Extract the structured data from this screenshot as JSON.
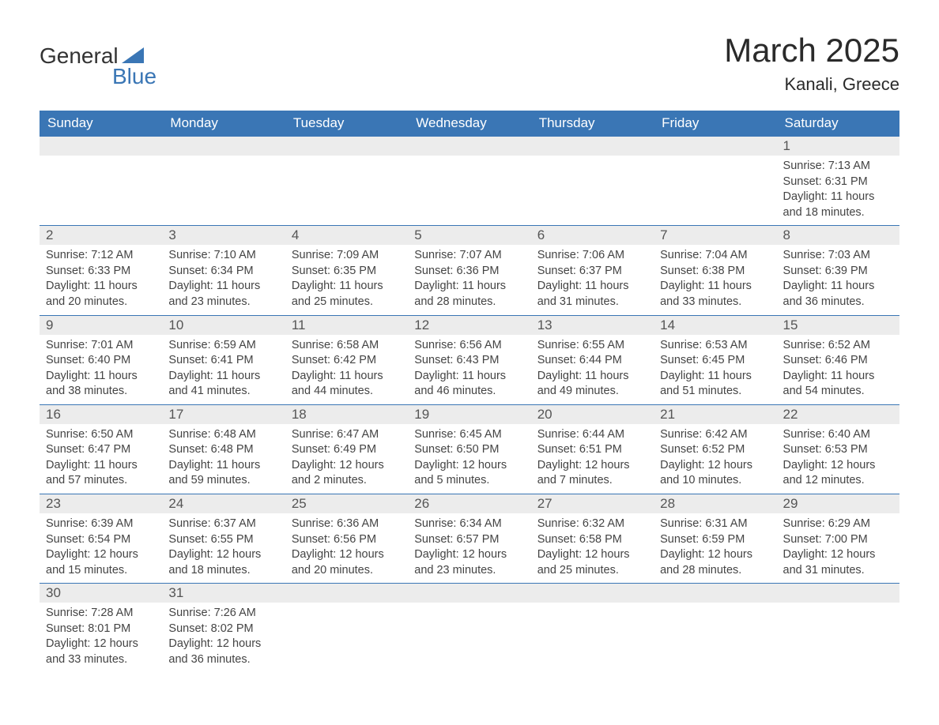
{
  "brand": {
    "name_part1": "General",
    "name_part2": "Blue"
  },
  "title": "March 2025",
  "location": "Kanali, Greece",
  "colors": {
    "header_bg": "#3a76b5",
    "header_text": "#ffffff",
    "daynum_bg": "#ececec",
    "border": "#3a76b5",
    "text": "#444444",
    "brand_blue": "#3a76b5"
  },
  "typography": {
    "title_fontsize": 42,
    "location_fontsize": 22,
    "header_fontsize": 17,
    "cell_fontsize": 14.5
  },
  "columns": [
    "Sunday",
    "Monday",
    "Tuesday",
    "Wednesday",
    "Thursday",
    "Friday",
    "Saturday"
  ],
  "weeks": [
    {
      "nums": [
        "",
        "",
        "",
        "",
        "",
        "",
        "1"
      ],
      "cells": [
        {
          "sunrise": "",
          "sunset": "",
          "daylight": ""
        },
        {
          "sunrise": "",
          "sunset": "",
          "daylight": ""
        },
        {
          "sunrise": "",
          "sunset": "",
          "daylight": ""
        },
        {
          "sunrise": "",
          "sunset": "",
          "daylight": ""
        },
        {
          "sunrise": "",
          "sunset": "",
          "daylight": ""
        },
        {
          "sunrise": "",
          "sunset": "",
          "daylight": ""
        },
        {
          "sunrise": "Sunrise: 7:13 AM",
          "sunset": "Sunset: 6:31 PM",
          "daylight": "Daylight: 11 hours and 18 minutes."
        }
      ]
    },
    {
      "nums": [
        "2",
        "3",
        "4",
        "5",
        "6",
        "7",
        "8"
      ],
      "cells": [
        {
          "sunrise": "Sunrise: 7:12 AM",
          "sunset": "Sunset: 6:33 PM",
          "daylight": "Daylight: 11 hours and 20 minutes."
        },
        {
          "sunrise": "Sunrise: 7:10 AM",
          "sunset": "Sunset: 6:34 PM",
          "daylight": "Daylight: 11 hours and 23 minutes."
        },
        {
          "sunrise": "Sunrise: 7:09 AM",
          "sunset": "Sunset: 6:35 PM",
          "daylight": "Daylight: 11 hours and 25 minutes."
        },
        {
          "sunrise": "Sunrise: 7:07 AM",
          "sunset": "Sunset: 6:36 PM",
          "daylight": "Daylight: 11 hours and 28 minutes."
        },
        {
          "sunrise": "Sunrise: 7:06 AM",
          "sunset": "Sunset: 6:37 PM",
          "daylight": "Daylight: 11 hours and 31 minutes."
        },
        {
          "sunrise": "Sunrise: 7:04 AM",
          "sunset": "Sunset: 6:38 PM",
          "daylight": "Daylight: 11 hours and 33 minutes."
        },
        {
          "sunrise": "Sunrise: 7:03 AM",
          "sunset": "Sunset: 6:39 PM",
          "daylight": "Daylight: 11 hours and 36 minutes."
        }
      ]
    },
    {
      "nums": [
        "9",
        "10",
        "11",
        "12",
        "13",
        "14",
        "15"
      ],
      "cells": [
        {
          "sunrise": "Sunrise: 7:01 AM",
          "sunset": "Sunset: 6:40 PM",
          "daylight": "Daylight: 11 hours and 38 minutes."
        },
        {
          "sunrise": "Sunrise: 6:59 AM",
          "sunset": "Sunset: 6:41 PM",
          "daylight": "Daylight: 11 hours and 41 minutes."
        },
        {
          "sunrise": "Sunrise: 6:58 AM",
          "sunset": "Sunset: 6:42 PM",
          "daylight": "Daylight: 11 hours and 44 minutes."
        },
        {
          "sunrise": "Sunrise: 6:56 AM",
          "sunset": "Sunset: 6:43 PM",
          "daylight": "Daylight: 11 hours and 46 minutes."
        },
        {
          "sunrise": "Sunrise: 6:55 AM",
          "sunset": "Sunset: 6:44 PM",
          "daylight": "Daylight: 11 hours and 49 minutes."
        },
        {
          "sunrise": "Sunrise: 6:53 AM",
          "sunset": "Sunset: 6:45 PM",
          "daylight": "Daylight: 11 hours and 51 minutes."
        },
        {
          "sunrise": "Sunrise: 6:52 AM",
          "sunset": "Sunset: 6:46 PM",
          "daylight": "Daylight: 11 hours and 54 minutes."
        }
      ]
    },
    {
      "nums": [
        "16",
        "17",
        "18",
        "19",
        "20",
        "21",
        "22"
      ],
      "cells": [
        {
          "sunrise": "Sunrise: 6:50 AM",
          "sunset": "Sunset: 6:47 PM",
          "daylight": "Daylight: 11 hours and 57 minutes."
        },
        {
          "sunrise": "Sunrise: 6:48 AM",
          "sunset": "Sunset: 6:48 PM",
          "daylight": "Daylight: 11 hours and 59 minutes."
        },
        {
          "sunrise": "Sunrise: 6:47 AM",
          "sunset": "Sunset: 6:49 PM",
          "daylight": "Daylight: 12 hours and 2 minutes."
        },
        {
          "sunrise": "Sunrise: 6:45 AM",
          "sunset": "Sunset: 6:50 PM",
          "daylight": "Daylight: 12 hours and 5 minutes."
        },
        {
          "sunrise": "Sunrise: 6:44 AM",
          "sunset": "Sunset: 6:51 PM",
          "daylight": "Daylight: 12 hours and 7 minutes."
        },
        {
          "sunrise": "Sunrise: 6:42 AM",
          "sunset": "Sunset: 6:52 PM",
          "daylight": "Daylight: 12 hours and 10 minutes."
        },
        {
          "sunrise": "Sunrise: 6:40 AM",
          "sunset": "Sunset: 6:53 PM",
          "daylight": "Daylight: 12 hours and 12 minutes."
        }
      ]
    },
    {
      "nums": [
        "23",
        "24",
        "25",
        "26",
        "27",
        "28",
        "29"
      ],
      "cells": [
        {
          "sunrise": "Sunrise: 6:39 AM",
          "sunset": "Sunset: 6:54 PM",
          "daylight": "Daylight: 12 hours and 15 minutes."
        },
        {
          "sunrise": "Sunrise: 6:37 AM",
          "sunset": "Sunset: 6:55 PM",
          "daylight": "Daylight: 12 hours and 18 minutes."
        },
        {
          "sunrise": "Sunrise: 6:36 AM",
          "sunset": "Sunset: 6:56 PM",
          "daylight": "Daylight: 12 hours and 20 minutes."
        },
        {
          "sunrise": "Sunrise: 6:34 AM",
          "sunset": "Sunset: 6:57 PM",
          "daylight": "Daylight: 12 hours and 23 minutes."
        },
        {
          "sunrise": "Sunrise: 6:32 AM",
          "sunset": "Sunset: 6:58 PM",
          "daylight": "Daylight: 12 hours and 25 minutes."
        },
        {
          "sunrise": "Sunrise: 6:31 AM",
          "sunset": "Sunset: 6:59 PM",
          "daylight": "Daylight: 12 hours and 28 minutes."
        },
        {
          "sunrise": "Sunrise: 6:29 AM",
          "sunset": "Sunset: 7:00 PM",
          "daylight": "Daylight: 12 hours and 31 minutes."
        }
      ]
    },
    {
      "nums": [
        "30",
        "31",
        "",
        "",
        "",
        "",
        ""
      ],
      "cells": [
        {
          "sunrise": "Sunrise: 7:28 AM",
          "sunset": "Sunset: 8:01 PM",
          "daylight": "Daylight: 12 hours and 33 minutes."
        },
        {
          "sunrise": "Sunrise: 7:26 AM",
          "sunset": "Sunset: 8:02 PM",
          "daylight": "Daylight: 12 hours and 36 minutes."
        },
        {
          "sunrise": "",
          "sunset": "",
          "daylight": ""
        },
        {
          "sunrise": "",
          "sunset": "",
          "daylight": ""
        },
        {
          "sunrise": "",
          "sunset": "",
          "daylight": ""
        },
        {
          "sunrise": "",
          "sunset": "",
          "daylight": ""
        },
        {
          "sunrise": "",
          "sunset": "",
          "daylight": ""
        }
      ]
    }
  ]
}
